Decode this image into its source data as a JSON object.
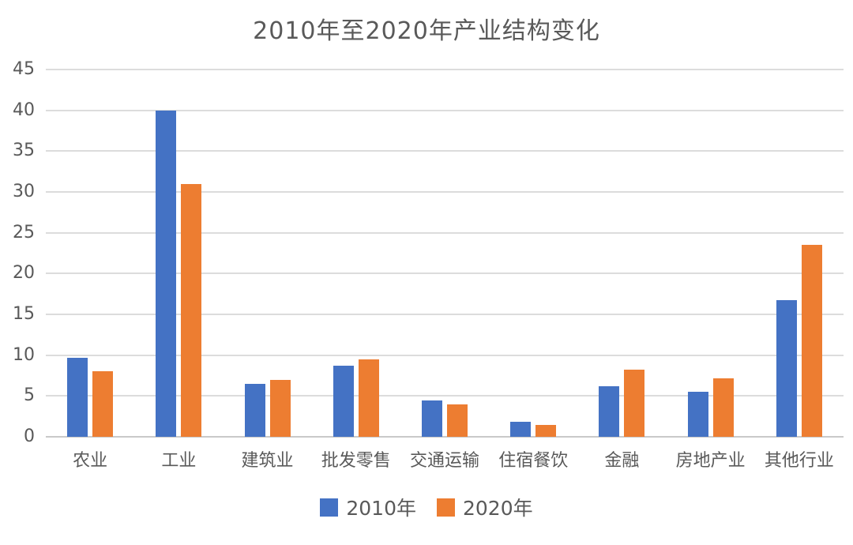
{
  "chart_data": {
    "type": "bar",
    "title": "2010年至2020年产业结构变化",
    "categories": [
      "农业",
      "工业",
      "建筑业",
      "批发零售",
      "交通运输",
      "住宿餐饮",
      "金融",
      "房地产业",
      "其他行业"
    ],
    "series": [
      {
        "name": "2010年",
        "color": "#4472C4",
        "values": [
          9.7,
          40,
          6.5,
          8.7,
          4.5,
          1.8,
          6.2,
          5.5,
          16.7
        ]
      },
      {
        "name": "2020年",
        "color": "#ED7D31",
        "values": [
          8,
          31,
          7,
          9.5,
          4,
          1.5,
          8.2,
          7.2,
          23.5
        ]
      }
    ],
    "xlabel": "",
    "ylabel": "",
    "ylim": [
      0,
      45
    ],
    "yticks": [
      0,
      5,
      10,
      15,
      20,
      25,
      30,
      35,
      40,
      45
    ],
    "grid": true,
    "legend_position": "bottom",
    "colors": {
      "text": "#595959",
      "gridline": "#DCDCDC",
      "background": "#FFFFFF"
    }
  }
}
